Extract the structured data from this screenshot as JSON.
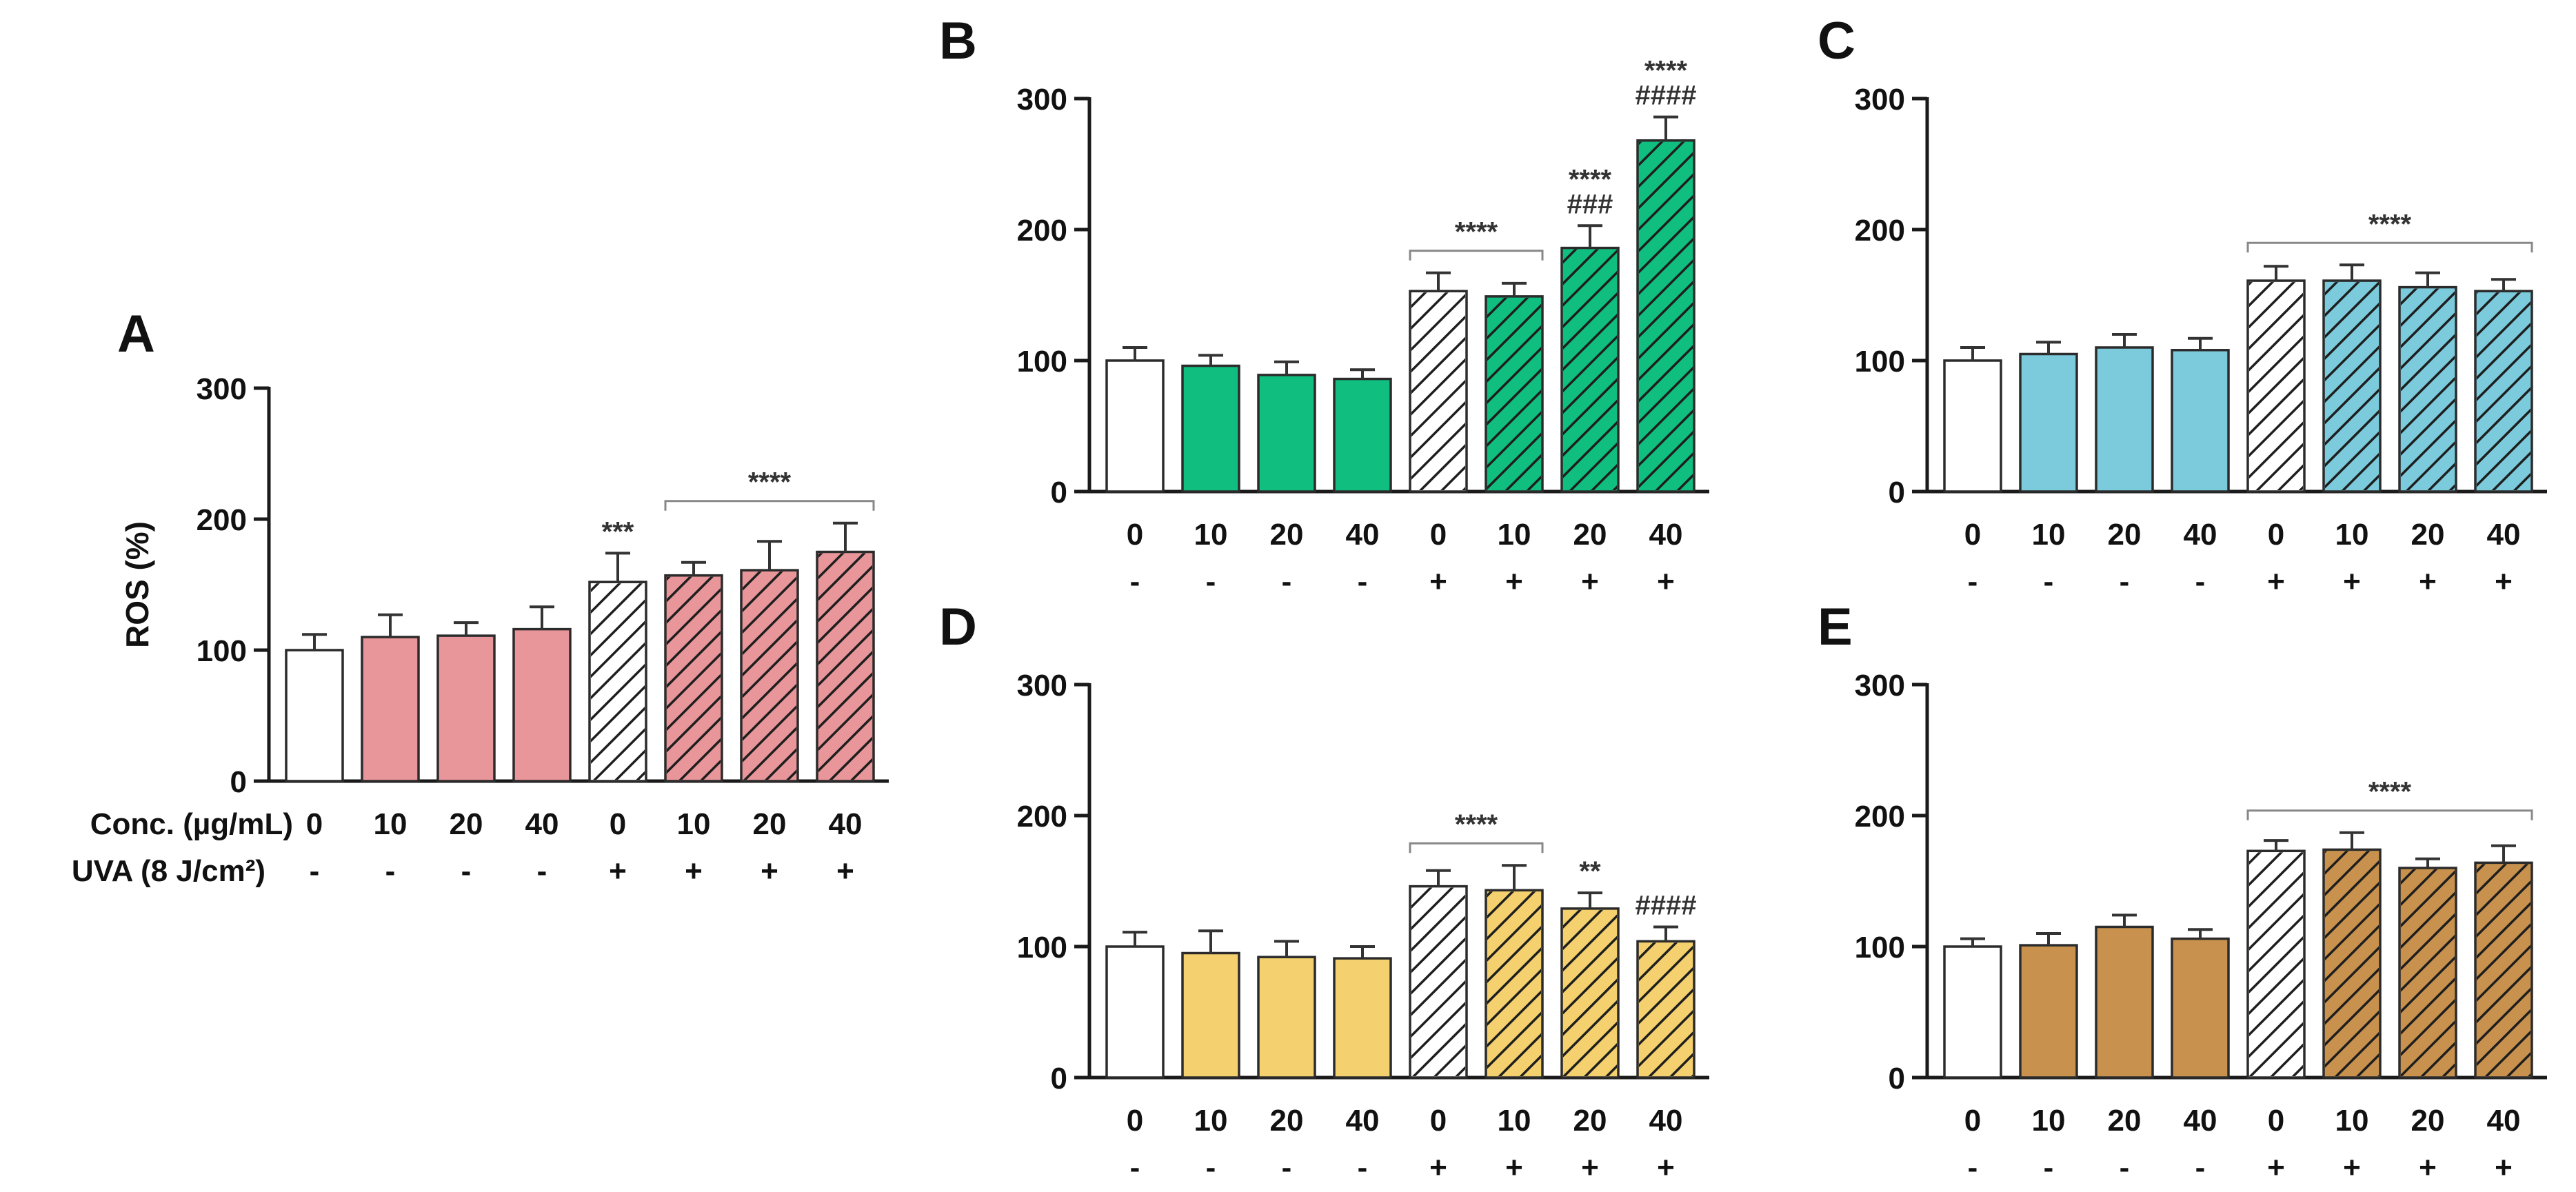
{
  "colors": {
    "axis": "#1a1a1a",
    "hatch": "#1e1e1e",
    "control": "#ffffff"
  },
  "row_labels": {
    "conc": "Conc. (µg/mL)",
    "uva": "UVA (8 J/cm²)"
  },
  "chart_data": [
    {
      "panel": "A",
      "type": "bar",
      "ylabel": "ROS (%)",
      "ylim": [
        0,
        300
      ],
      "yticks": [
        "0",
        "100",
        "200",
        "300"
      ],
      "categories": [
        "0",
        "10",
        "20",
        "40",
        "0",
        "10",
        "20",
        "40"
      ],
      "uva": [
        "-",
        "-",
        "-",
        "-",
        "+",
        "+",
        "+",
        "+"
      ],
      "values": [
        100,
        110,
        111,
        116,
        152,
        157,
        161,
        175
      ],
      "errors": [
        12,
        17,
        10,
        17,
        22,
        10,
        22,
        22
      ],
      "fills": [
        "#ffffff",
        "#e8969a",
        "#e8969a",
        "#e8969a",
        "#ffffff",
        "#e8969a",
        "#e8969a",
        "#e8969a"
      ],
      "hatched": [
        false,
        false,
        false,
        false,
        true,
        true,
        true,
        true
      ],
      "annotations": [
        {
          "bar": 4,
          "lines": [
            "***"
          ]
        }
      ],
      "brackets": [
        {
          "from": 5,
          "to": 7,
          "label": "****"
        }
      ]
    },
    {
      "panel": "B",
      "type": "bar",
      "ylabel": "",
      "ylim": [
        0,
        300
      ],
      "yticks": [
        "0",
        "100",
        "200",
        "300"
      ],
      "categories": [
        "0",
        "10",
        "20",
        "40",
        "0",
        "10",
        "20",
        "40"
      ],
      "uva": [
        "-",
        "-",
        "-",
        "-",
        "+",
        "+",
        "+",
        "+"
      ],
      "values": [
        100,
        96,
        89,
        86,
        153,
        149,
        186,
        268
      ],
      "errors": [
        10,
        8,
        10,
        7,
        14,
        10,
        17,
        18
      ],
      "fills": [
        "#ffffff",
        "#10bf80",
        "#10bf80",
        "#10bf80",
        "#ffffff",
        "#10bf80",
        "#10bf80",
        "#10bf80"
      ],
      "hatched": [
        false,
        false,
        false,
        false,
        true,
        true,
        true,
        true
      ],
      "annotations": [
        {
          "bar": 6,
          "lines": [
            "****",
            "###"
          ]
        },
        {
          "bar": 7,
          "lines": [
            "****",
            "####"
          ]
        }
      ],
      "brackets": [
        {
          "from": 4,
          "to": 5,
          "label": "****"
        }
      ]
    },
    {
      "panel": "C",
      "type": "bar",
      "ylabel": "",
      "ylim": [
        0,
        300
      ],
      "yticks": [
        "0",
        "100",
        "200",
        "300"
      ],
      "categories": [
        "0",
        "10",
        "20",
        "40",
        "0",
        "10",
        "20",
        "40"
      ],
      "uva": [
        "-",
        "-",
        "-",
        "-",
        "+",
        "+",
        "+",
        "+"
      ],
      "values": [
        100,
        105,
        110,
        108,
        161,
        161,
        156,
        153
      ],
      "errors": [
        10,
        9,
        10,
        9,
        11,
        12,
        11,
        9
      ],
      "fills": [
        "#ffffff",
        "#7ccbdc",
        "#7ccbdc",
        "#7ccbdc",
        "#ffffff",
        "#7ccbdc",
        "#7ccbdc",
        "#7ccbdc"
      ],
      "hatched": [
        false,
        false,
        false,
        false,
        true,
        true,
        true,
        true
      ],
      "annotations": [],
      "brackets": [
        {
          "from": 4,
          "to": 7,
          "label": "****"
        }
      ]
    },
    {
      "panel": "D",
      "type": "bar",
      "ylabel": "",
      "ylim": [
        0,
        300
      ],
      "yticks": [
        "0",
        "100",
        "200",
        "300"
      ],
      "categories": [
        "0",
        "10",
        "20",
        "40",
        "0",
        "10",
        "20",
        "40"
      ],
      "uva": [
        "-",
        "-",
        "-",
        "-",
        "+",
        "+",
        "+",
        "+"
      ],
      "values": [
        100,
        95,
        92,
        91,
        146,
        143,
        129,
        104
      ],
      "errors": [
        11,
        17,
        12,
        9,
        12,
        19,
        12,
        11
      ],
      "fills": [
        "#ffffff",
        "#f4d16e",
        "#f4d16e",
        "#f4d16e",
        "#ffffff",
        "#f4d16e",
        "#f4d16e",
        "#f4d16e"
      ],
      "hatched": [
        false,
        false,
        false,
        false,
        true,
        true,
        true,
        true
      ],
      "annotations": [
        {
          "bar": 6,
          "lines": [
            "**"
          ]
        },
        {
          "bar": 7,
          "lines": [
            "####"
          ]
        }
      ],
      "brackets": [
        {
          "from": 4,
          "to": 5,
          "label": "****"
        }
      ]
    },
    {
      "panel": "E",
      "type": "bar",
      "ylabel": "",
      "ylim": [
        0,
        300
      ],
      "yticks": [
        "0",
        "100",
        "200",
        "300"
      ],
      "categories": [
        "0",
        "10",
        "20",
        "40",
        "0",
        "10",
        "20",
        "40"
      ],
      "uva": [
        "-",
        "-",
        "-",
        "-",
        "+",
        "+",
        "+",
        "+"
      ],
      "values": [
        100,
        101,
        115,
        106,
        173,
        174,
        160,
        164
      ],
      "errors": [
        6,
        9,
        9,
        7,
        8,
        13,
        7,
        13
      ],
      "fills": [
        "#ffffff",
        "#c8924e",
        "#c8924e",
        "#c8924e",
        "#ffffff",
        "#c8924e",
        "#c8924e",
        "#c8924e"
      ],
      "hatched": [
        false,
        false,
        false,
        false,
        true,
        true,
        true,
        true
      ],
      "annotations": [],
      "brackets": [
        {
          "from": 4,
          "to": 7,
          "label": "****"
        }
      ]
    }
  ]
}
